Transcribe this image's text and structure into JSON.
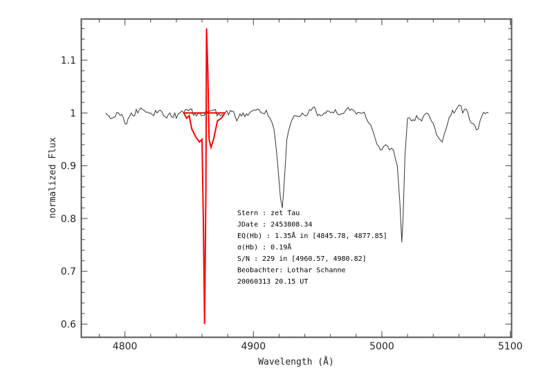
{
  "chart_data": {
    "type": "line",
    "title": "",
    "xlabel": "Wavelength (Å)",
    "ylabel": "normalized Flux",
    "xlim": [
      4766,
      5101
    ],
    "ylim": [
      0.575,
      1.178
    ],
    "xticks": [
      4800,
      4900,
      5000,
      5100
    ],
    "xtick_labels": [
      "4800",
      "4900",
      "5000",
      "5100"
    ],
    "yticks": [
      0.6,
      0.7,
      0.8,
      0.9,
      1.0,
      1.1
    ],
    "ytick_labels": [
      "0.6",
      "0.7",
      "0.8",
      "0.9",
      "1",
      "1.1"
    ],
    "grid": false,
    "legend": "none",
    "series": [
      {
        "name": "spectrum",
        "color": "#333333",
        "x": [
          4785,
          4790,
          4795,
          4800,
          4805,
          4810,
          4815,
          4820,
          4825,
          4830,
          4835,
          4840,
          4845.78,
          4877.85,
          4882,
          4887,
          4892,
          4897,
          4902,
          4907,
          4910,
          4913,
          4916,
          4919,
          4921,
          4922.5,
          4924,
          4926,
          4929,
          4933,
          4938,
          4945,
          4955,
          4965,
          4975,
          4985,
          4990,
          4995,
          5000,
          5003,
          5006,
          5009,
          5012,
          5014,
          5015.5,
          5016.5,
          5018,
          5020,
          5023,
          5027,
          5031,
          5035,
          5040,
          5045,
          5047,
          5050,
          5055,
          5060,
          5063,
          5067,
          5071,
          5075,
          5078,
          5083
        ],
        "y": [
          1.0,
          0.99,
          1.0,
          0.98,
          1.0,
          1.0,
          1.005,
          1.0,
          1.0,
          0.995,
          1.0,
          0.99,
          1.0,
          1.0,
          1.005,
          0.985,
          1.0,
          1.0,
          1.005,
          1.0,
          1.005,
          0.99,
          0.97,
          0.9,
          0.84,
          0.82,
          0.87,
          0.95,
          0.98,
          0.995,
          1.0,
          1.005,
          1.0,
          1.0,
          1.005,
          1.0,
          0.98,
          0.95,
          0.93,
          0.94,
          0.93,
          0.93,
          0.9,
          0.83,
          0.755,
          0.8,
          0.92,
          0.99,
          0.985,
          0.995,
          0.985,
          1.0,
          0.98,
          0.95,
          0.945,
          0.97,
          1.005,
          1.015,
          1.0,
          1.0,
          0.98,
          0.97,
          0.995,
          1.0
        ]
      },
      {
        "name": "Hb fit region",
        "color": "#ff0000",
        "x": [
          4845.78,
          4848,
          4850,
          4852,
          4855,
          4858,
          4860,
          4861,
          4862,
          4863,
          4863.5,
          4864.5,
          4865.5,
          4867,
          4869,
          4872,
          4875,
          4877.85
        ],
        "y": [
          1.0,
          0.99,
          0.995,
          0.97,
          0.955,
          0.945,
          0.95,
          0.8,
          0.6,
          0.85,
          1.16,
          1.08,
          0.95,
          0.935,
          0.95,
          0.985,
          0.99,
          1.0
        ]
      },
      {
        "name": "continuum",
        "color": "#ff0000",
        "x": [
          4845.78,
          4877.85
        ],
        "y": [
          1.0,
          1.0
        ]
      }
    ],
    "annotations": [
      "Stern   : zet Tau",
      "JDate   : 2453808.34",
      "EQ(Hb) : 1.35Å in [4845.78, 4877.85]",
      "σ(Hb)   : 0.19Å",
      "S/N     : 229 in [4960.57, 4980.82]",
      "Beobachter: Lothar Schanne",
      "20060313 20.15 UT"
    ]
  },
  "labels": {
    "xlabel": "Wavelength (Å)",
    "ylabel": "normalized Flux"
  }
}
